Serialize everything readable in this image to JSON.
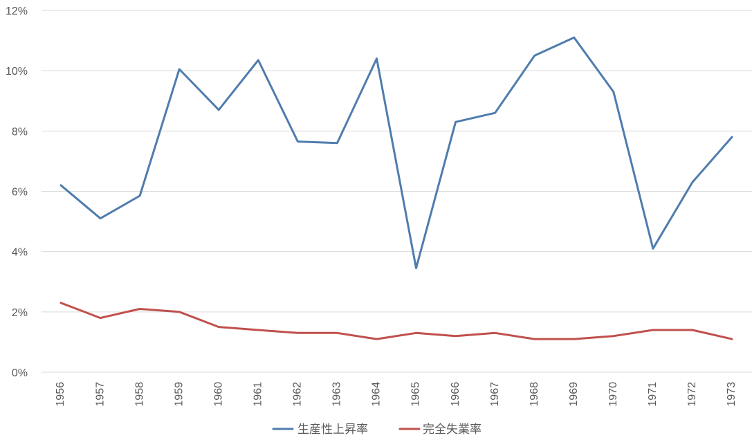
{
  "chart_data": {
    "type": "line",
    "categories": [
      "1956",
      "1957",
      "1958",
      "1959",
      "1960",
      "1961",
      "1962",
      "1963",
      "1964",
      "1965",
      "1966",
      "1967",
      "1968",
      "1969",
      "1970",
      "1971",
      "1972",
      "1973"
    ],
    "y_ticks": [
      "0%",
      "2%",
      "4%",
      "6%",
      "8%",
      "10%",
      "12%"
    ],
    "ylim": [
      0,
      12
    ],
    "grid": true,
    "legend_position": "bottom",
    "series": [
      {
        "name": "生産性上昇率",
        "color": "#4f7cad",
        "values": [
          6.2,
          5.1,
          5.85,
          10.05,
          8.7,
          10.35,
          7.65,
          7.6,
          10.4,
          3.45,
          8.3,
          8.6,
          10.5,
          11.1,
          9.3,
          4.1,
          6.3,
          7.8
        ]
      },
      {
        "name": "完全失業率",
        "color": "#c0504d",
        "values": [
          2.3,
          1.8,
          2.1,
          2.0,
          1.5,
          1.4,
          1.3,
          1.3,
          1.1,
          1.3,
          1.2,
          1.3,
          1.1,
          1.1,
          1.2,
          1.4,
          1.4,
          1.1
        ]
      }
    ]
  }
}
